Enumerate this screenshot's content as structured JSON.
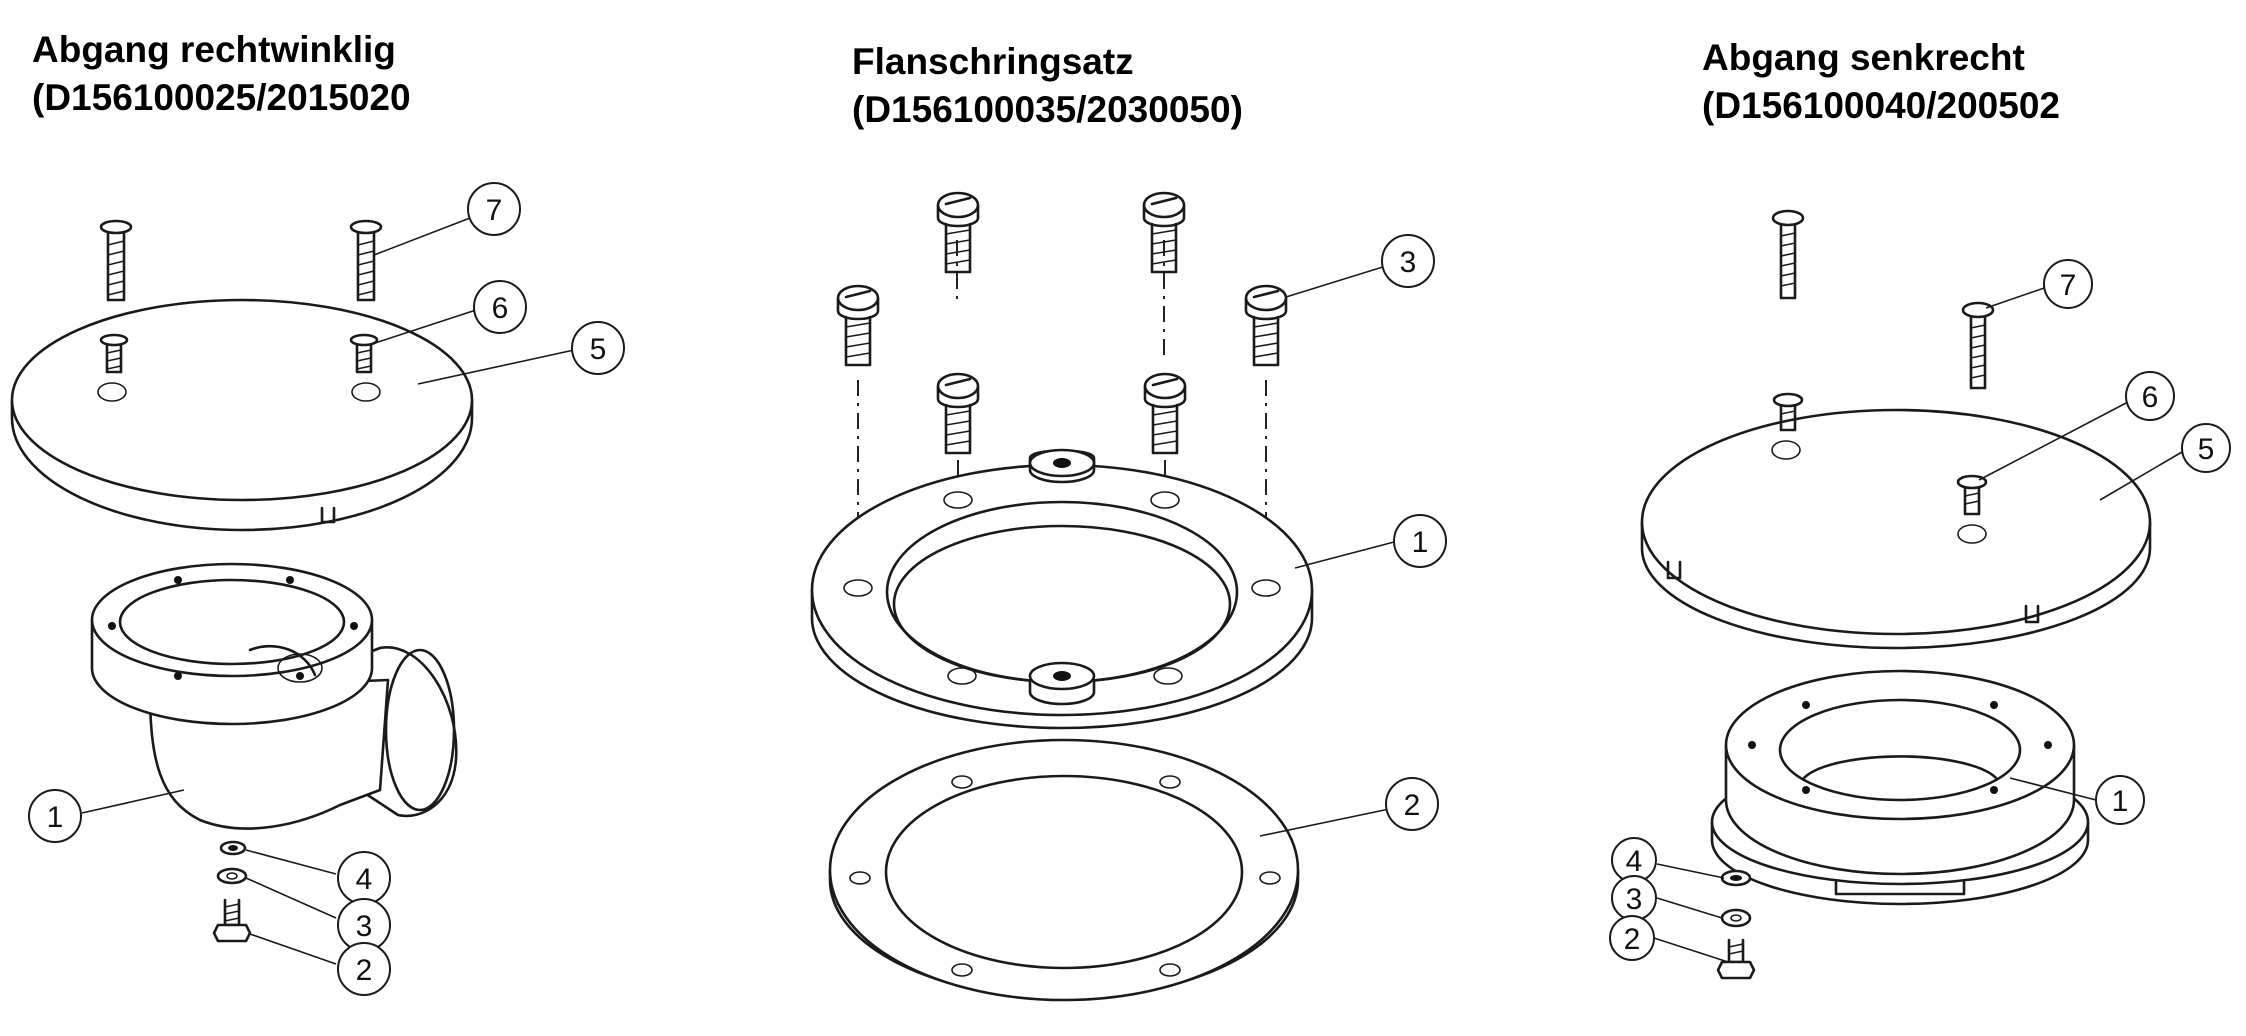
{
  "panels": [
    {
      "title_line1": "Abgang rechtwinklig",
      "title_line2": "(D156100025/2015020"
    },
    {
      "title_line1": "Flanschringsatz",
      "title_line2": "(D156100035/2030050)"
    },
    {
      "title_line1": "Abgang senkrecht",
      "title_line2": "(D156100040/200502"
    }
  ],
  "callouts": {
    "left": [
      "7",
      "6",
      "5",
      "1",
      "4",
      "3",
      "2"
    ],
    "middle": [
      "3",
      "1",
      "2"
    ],
    "right": [
      "7",
      "6",
      "5",
      "1",
      "4",
      "3",
      "2"
    ]
  }
}
